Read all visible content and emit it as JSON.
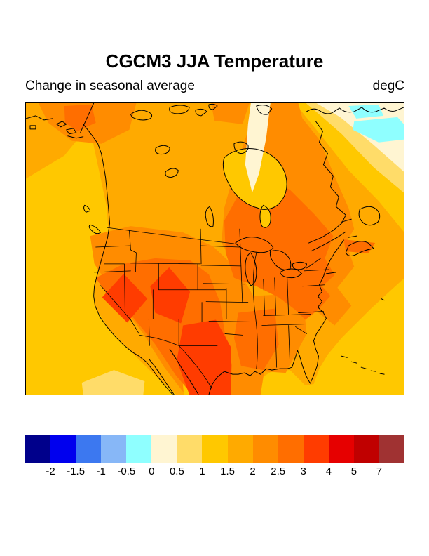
{
  "title": "CGCM3 JJA Temperature",
  "subtitle": "Change in seasonal average",
  "units": "degC",
  "colorbar": {
    "tick_labels": [
      "-2",
      "-1.5",
      "-1",
      "-0.5",
      "0",
      "0.5",
      "1",
      "1.5",
      "2",
      "2.5",
      "3",
      "4",
      "5",
      "7"
    ],
    "colors": [
      "#00008B",
      "#0000EE",
      "#3C78F0",
      "#87B7F7",
      "#8FFFFF",
      "#FFF5D2",
      "#FFDC69",
      "#FFC800",
      "#FFAA00",
      "#FF8C00",
      "#FF6E00",
      "#FF3C00",
      "#E60000",
      "#C00000",
      "#A03232"
    ]
  },
  "chart_data": {
    "type": "heatmap",
    "title": "CGCM3 JJA Temperature",
    "subtitle": "Change in seasonal average",
    "units": "degC",
    "projection": "North America (Canada, USA, Mexico) filled contour map",
    "legend_position": "bottom",
    "contour_levels_degC": [
      -2,
      -1.5,
      -1,
      -0.5,
      0,
      0.5,
      1,
      1.5,
      2,
      2.5,
      3,
      4,
      5,
      7
    ],
    "palette": [
      "#00008B",
      "#0000EE",
      "#3C78F0",
      "#87B7F7",
      "#8FFFFF",
      "#FFF5D2",
      "#FFDC69",
      "#FFC800",
      "#FFAA00",
      "#FF8C00",
      "#FF6E00",
      "#FF3C00",
      "#E60000",
      "#C00000",
      "#A03232"
    ],
    "region_values_degC": [
      {
        "region": "Pacific Ocean off west coast",
        "value": "1 to 1.5"
      },
      {
        "region": "Gulf of Mexico and western Atlantic",
        "value": "1 to 1.5"
      },
      {
        "region": "Most of continental interior (Canada and USA)",
        "value": "1.5 to 2.5"
      },
      {
        "region": "Quebec / Great Lakes / New England",
        "value": "2.5 to 3"
      },
      {
        "region": "Nevada Great Basin",
        "value": "3 to 4"
      },
      {
        "region": "Utah-Colorado Rockies",
        "value": "3 to 4"
      },
      {
        "region": "Northern Mexico interior",
        "value": "3 to 4"
      },
      {
        "region": "Mississippi-Alabama",
        "value": "2.5 to 3"
      },
      {
        "region": "Alaska-Yukon border area",
        "value": "2.5 to 3"
      },
      {
        "region": "Hudson Bay",
        "value": "0.5 to 1.5"
      },
      {
        "region": "Labrador Sea / northwest Atlantic",
        "value": "0 to 1"
      },
      {
        "region": "Ocean near southern Greenland",
        "value": "-0.5 to 0"
      }
    ]
  }
}
